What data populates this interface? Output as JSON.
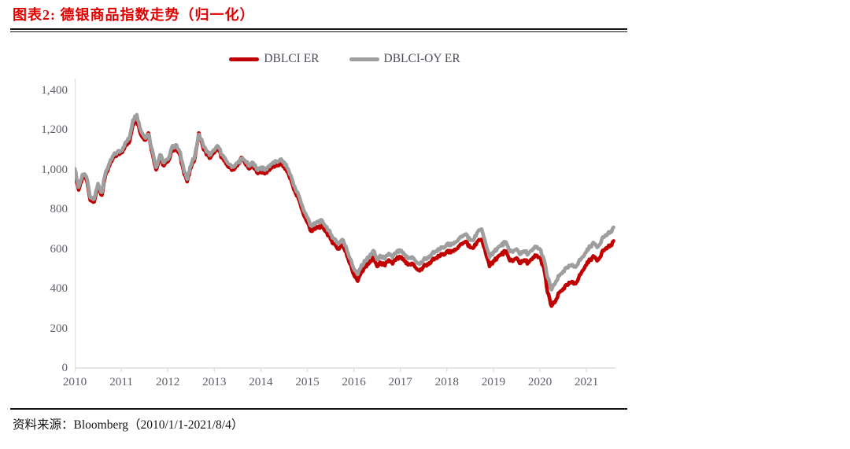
{
  "figure": {
    "title": "图表2: 德银商品指数走势（归一化）",
    "source": "资料来源：Bloomberg（2010/1/1-2021/8/4）"
  },
  "colors": {
    "title_red": "#e10000",
    "series_red": "#c00000",
    "series_gray": "#9e9e9e",
    "axis_text": "#5f5f6a",
    "legend_text": "#4d4d5c",
    "axis_line": "#dedede",
    "rule_black": "#141414"
  },
  "chart_data": {
    "type": "line",
    "title": "德银商品指数走势（归一化）",
    "xlabel": "",
    "ylabel": "",
    "x_start": 2010.0,
    "x_step": 0.0833333,
    "x_range": [
      2010.0,
      2021.583
    ],
    "x_ticks": [
      2010,
      2011,
      2012,
      2013,
      2014,
      2015,
      2016,
      2017,
      2018,
      2019,
      2020,
      2021
    ],
    "ylim": [
      0,
      1400
    ],
    "y_ticks": [
      0,
      200,
      400,
      600,
      800,
      1000,
      1200,
      1400
    ],
    "grid": false,
    "legend_position": "top-center",
    "series": [
      {
        "name": "DBLCI ER",
        "color": "#c00000",
        "values": [
          992,
          898,
          962,
          950,
          846,
          838,
          918,
          872,
          978,
          1022,
          1060,
          1078,
          1085,
          1120,
          1135,
          1230,
          1255,
          1180,
          1150,
          1185,
          1085,
          1000,
          1060,
          1020,
          1040,
          1095,
          1110,
          1080,
          1000,
          940,
          1010,
          1060,
          1185,
          1120,
          1075,
          1060,
          1085,
          1105,
          1060,
          1030,
          1010,
          1000,
          1020,
          1062,
          1030,
          1005,
          1022,
          985,
          995,
          980,
          1000,
          1015,
          1020,
          1030,
          1018,
          985,
          935,
          880,
          840,
          775,
          735,
          690,
          700,
          715,
          710,
          685,
          650,
          625,
          600,
          620,
          585,
          525,
          470,
          438,
          490,
          510,
          530,
          558,
          512,
          530,
          516,
          545,
          525,
          552,
          555,
          540,
          520,
          528,
          505,
          490,
          512,
          525,
          538,
          552,
          562,
          576,
          588,
          582,
          598,
          612,
          625,
          638,
          608,
          610,
          640,
          648,
          582,
          512,
          540,
          558,
          570,
          590,
          552,
          538,
          555,
          528,
          545,
          530,
          548,
          568,
          556,
          506,
          380,
          312,
          336,
          380,
          400,
          418,
          430,
          425,
          455,
          492,
          520,
          548,
          560,
          545,
          585,
          605,
          612,
          641
        ]
      },
      {
        "name": "DBLCI-OY ER",
        "color": "#9e9e9e",
        "values": [
          1005,
          912,
          976,
          964,
          860,
          852,
          930,
          886,
          990,
          1034,
          1072,
          1090,
          1095,
          1135,
          1155,
          1250,
          1278,
          1200,
          1165,
          1178,
          1100,
          1012,
          1075,
          1035,
          1052,
          1110,
          1125,
          1095,
          1015,
          952,
          1022,
          1072,
          1178,
          1135,
          1090,
          1075,
          1098,
          1118,
          1075,
          1046,
          1026,
          1014,
          1034,
          1056,
          1044,
          1018,
          1036,
          1000,
          1012,
          998,
          1018,
          1034,
          1040,
          1052,
          1038,
          1005,
          955,
          900,
          860,
          798,
          760,
          716,
          726,
          742,
          736,
          712,
          676,
          652,
          628,
          648,
          612,
          552,
          500,
          472,
          520,
          540,
          562,
          592,
          546,
          564,
          550,
          578,
          558,
          585,
          588,
          572,
          552,
          560,
          538,
          524,
          546,
          558,
          572,
          586,
          596,
          610,
          625,
          618,
          635,
          650,
          662,
          676,
          645,
          650,
          688,
          700,
          628,
          558,
          586,
          604,
          616,
          636,
          598,
          584,
          600,
          574,
          590,
          576,
          592,
          612,
          600,
          552,
          455,
          395,
          430,
          465,
          488,
          505,
          515,
          510,
          535,
          560,
          585,
          615,
          628,
          612,
          652,
          672,
          680,
          710
        ]
      }
    ]
  }
}
